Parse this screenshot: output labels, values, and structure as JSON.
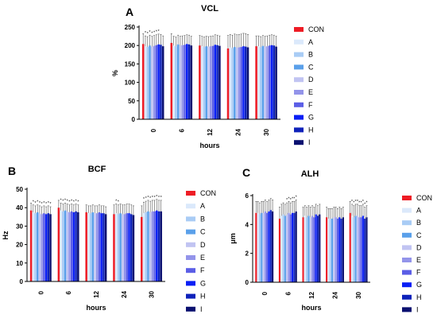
{
  "colors": {
    "CON": "#ee1c25",
    "A": "#dbe9fb",
    "B": "#a9ccf5",
    "C": "#5aa0ea",
    "D": "#c1c4f2",
    "E": "#9394ea",
    "F": "#5b5ee6",
    "G": "#0a1ff5",
    "H": "#0e22ba",
    "I": "#0a1070"
  },
  "legend_labels": [
    "CON",
    "A",
    "B",
    "C",
    "D",
    "E",
    "F",
    "G",
    "H",
    "I"
  ],
  "chart_data": [
    {
      "panel": "A",
      "type": "bar",
      "title": "VCL",
      "xlabel": "hours",
      "ylabel": "%",
      "ylim": [
        0,
        250
      ],
      "yticks": [
        "0",
        "50",
        "100",
        "150",
        "200",
        "250"
      ],
      "categories": [
        "0",
        "6",
        "12",
        "24",
        "30"
      ],
      "legend_position": "right",
      "series": [
        {
          "name": "CON",
          "values": [
            204,
            207,
            200,
            192,
            198
          ]
        },
        {
          "name": "A",
          "values": [
            198,
            200,
            198,
            195,
            198
          ]
        },
        {
          "name": "B",
          "values": [
            196,
            198,
            196,
            193,
            196
          ]
        },
        {
          "name": "C",
          "values": [
            200,
            203,
            198,
            196,
            199
          ]
        },
        {
          "name": "D",
          "values": [
            197,
            200,
            197,
            194,
            197
          ]
        },
        {
          "name": "E",
          "values": [
            199,
            201,
            198,
            195,
            198
          ]
        },
        {
          "name": "F",
          "values": [
            201,
            202,
            199,
            196,
            200
          ]
        },
        {
          "name": "G",
          "values": [
            203,
            204,
            202,
            198,
            201
          ]
        },
        {
          "name": "H",
          "values": [
            202,
            203,
            201,
            197,
            200
          ]
        },
        {
          "name": "I",
          "values": [
            198,
            200,
            199,
            195,
            197
          ]
        }
      ],
      "errors": [
        28,
        25,
        27,
        35,
        28
      ],
      "stars": [
        [
          1,
          2,
          3,
          4,
          5,
          6,
          7
        ],
        [],
        [],
        [],
        []
      ]
    },
    {
      "panel": "B",
      "type": "bar",
      "title": "BCF",
      "xlabel": "hours",
      "ylabel": "Hz",
      "ylim": [
        0,
        50
      ],
      "yticks": [
        "0",
        "10",
        "20",
        "30",
        "40",
        "50"
      ],
      "categories": [
        "0",
        "6",
        "12",
        "24",
        "30"
      ],
      "legend_position": "right",
      "series": [
        {
          "name": "CON",
          "values": [
            38.5,
            40,
            37.5,
            36.5,
            35
          ]
        },
        {
          "name": "A",
          "values": [
            37.5,
            38.5,
            37,
            37,
            37
          ]
        },
        {
          "name": "B",
          "values": [
            37,
            38,
            37,
            36.5,
            37.5
          ]
        },
        {
          "name": "C",
          "values": [
            37.5,
            38.5,
            37.5,
            37,
            38
          ]
        },
        {
          "name": "D",
          "values": [
            37,
            38,
            37,
            36.5,
            37.5
          ]
        },
        {
          "name": "E",
          "values": [
            36.5,
            37.5,
            37,
            36.5,
            38
          ]
        },
        {
          "name": "F",
          "values": [
            37,
            38,
            37.5,
            37,
            38
          ]
        },
        {
          "name": "G",
          "values": [
            36.5,
            37.5,
            37,
            37,
            38.5
          ]
        },
        {
          "name": "H",
          "values": [
            37,
            38,
            37,
            36.5,
            38
          ]
        },
        {
          "name": "I",
          "values": [
            36.5,
            37.5,
            36.5,
            36,
            38
          ]
        }
      ],
      "errors": [
        4,
        4,
        4,
        5,
        6
      ],
      "stars": [
        [
          1,
          2,
          3,
          4,
          5,
          6,
          7,
          8,
          9
        ],
        [
          1,
          2,
          3,
          4,
          5,
          6,
          7,
          8,
          9
        ],
        [],
        [
          1,
          2
        ],
        [
          1,
          2,
          3,
          4,
          5,
          6,
          7,
          8,
          9
        ]
      ]
    },
    {
      "panel": "C",
      "type": "bar",
      "title": "ALH",
      "xlabel": "hours",
      "ylabel": "μm",
      "ylim": [
        0,
        6
      ],
      "yticks": [
        "0",
        "2",
        "4",
        "6"
      ],
      "categories": [
        "0",
        "6",
        "12",
        "24",
        "30"
      ],
      "legend_position": "right",
      "series": [
        {
          "name": "CON",
          "values": [
            4.8,
            4.4,
            4.5,
            4.5,
            4.8
          ]
        },
        {
          "name": "A",
          "values": [
            4.8,
            4.6,
            4.6,
            4.4,
            4.6
          ]
        },
        {
          "name": "B",
          "values": [
            4.7,
            4.7,
            4.5,
            4.4,
            4.5
          ]
        },
        {
          "name": "C",
          "values": [
            4.8,
            4.6,
            4.6,
            4.4,
            4.6
          ]
        },
        {
          "name": "D",
          "values": [
            4.8,
            4.7,
            4.5,
            4.5,
            4.6
          ]
        },
        {
          "name": "E",
          "values": [
            4.9,
            4.8,
            4.6,
            4.5,
            4.5
          ]
        },
        {
          "name": "F",
          "values": [
            4.8,
            4.7,
            4.5,
            4.4,
            4.5
          ]
        },
        {
          "name": "G",
          "values": [
            4.9,
            4.8,
            4.7,
            4.5,
            4.6
          ]
        },
        {
          "name": "H",
          "values": [
            5.0,
            4.8,
            4.6,
            4.4,
            4.4
          ]
        },
        {
          "name": "I",
          "values": [
            4.9,
            4.9,
            4.7,
            4.5,
            4.5
          ]
        }
      ],
      "errors": [
        0.8,
        0.8,
        0.7,
        0.7,
        0.8
      ],
      "stars": [
        [],
        [
          4,
          5,
          6,
          7,
          8,
          9
        ],
        [],
        [],
        [
          1,
          2,
          3,
          4,
          5,
          6,
          7,
          8,
          9
        ]
      ]
    }
  ]
}
